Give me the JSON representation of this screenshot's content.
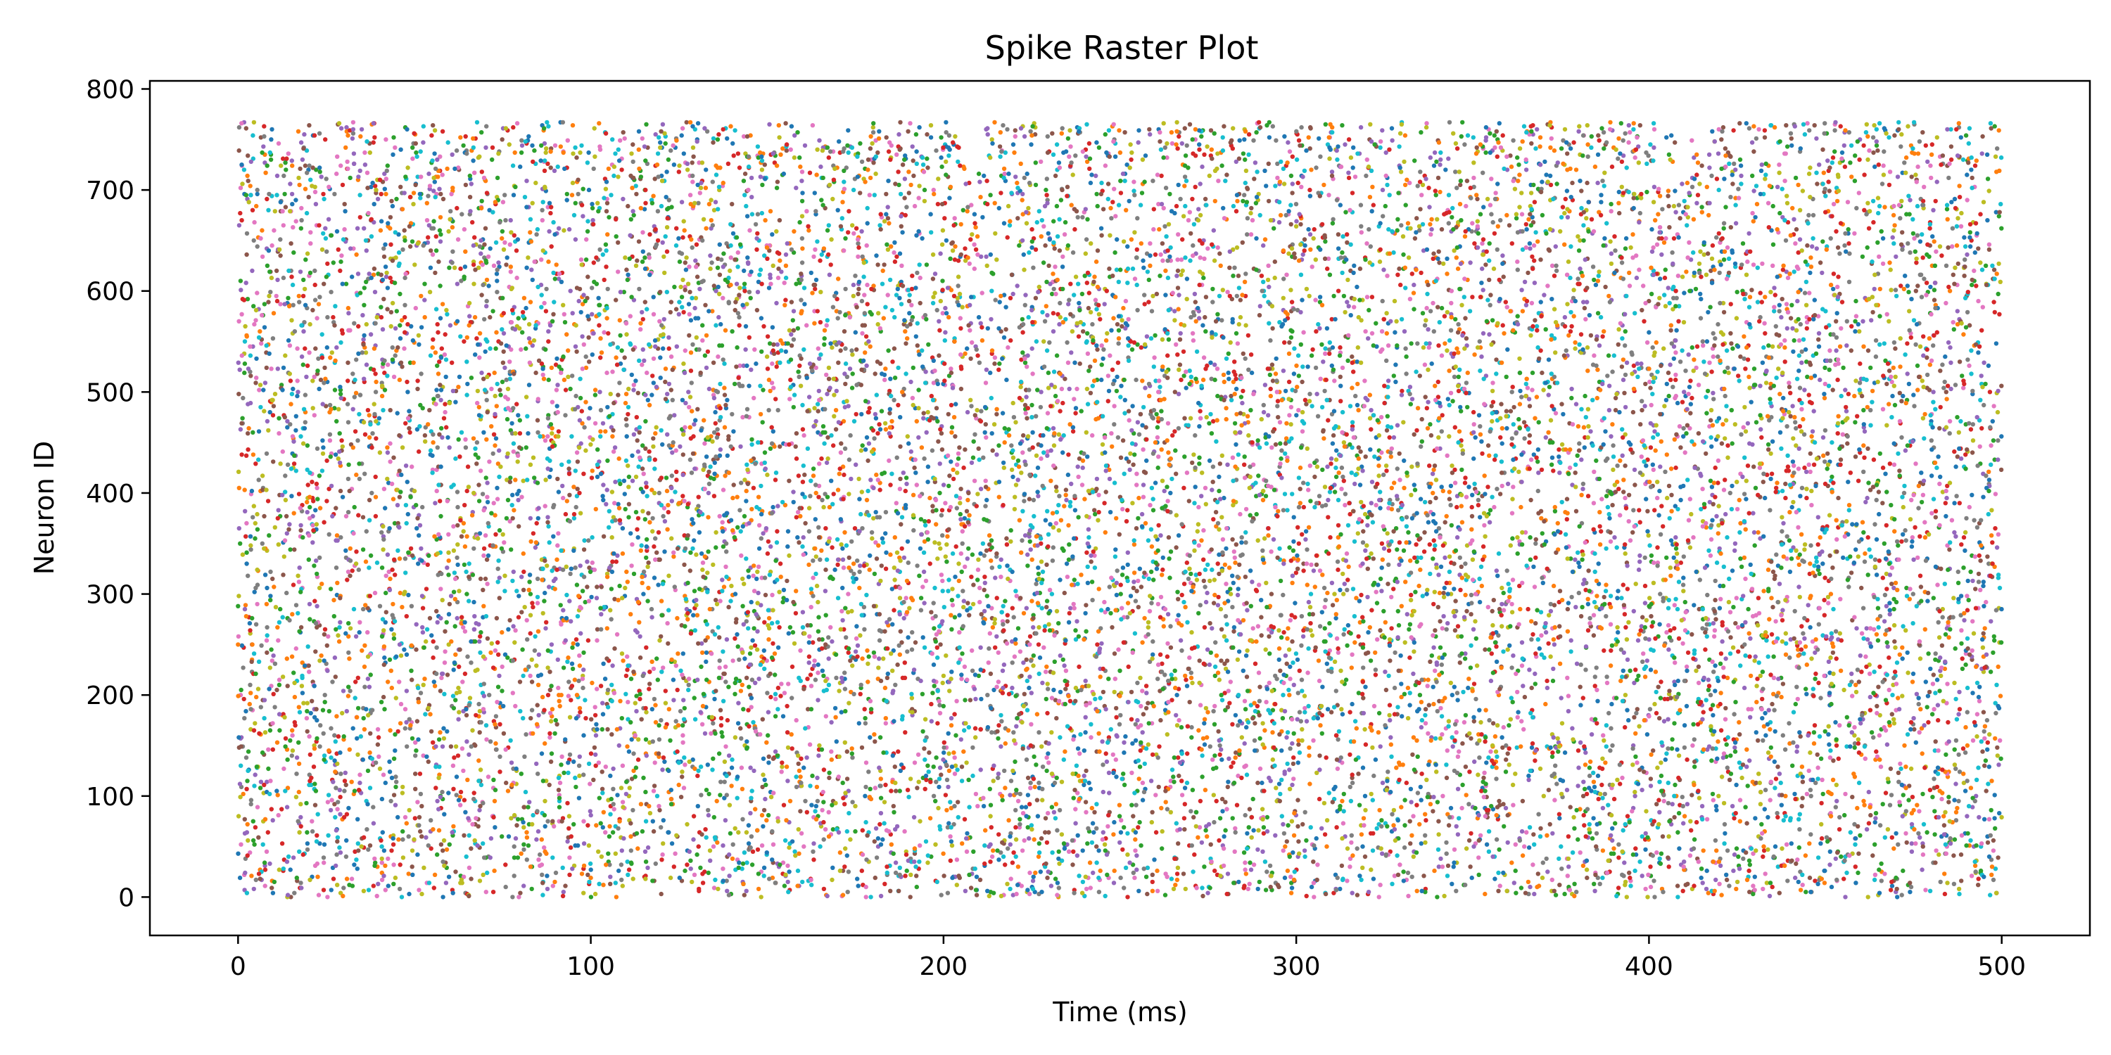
{
  "chart_data": {
    "type": "scatter",
    "title": "Spike Raster Plot",
    "xlabel": "Time (ms)",
    "ylabel": "Neuron ID",
    "xlim": [
      -25,
      525
    ],
    "ylim": [
      -38,
      808
    ],
    "x_ticks": [
      0,
      100,
      200,
      300,
      400,
      500
    ],
    "y_ticks": [
      0,
      100,
      200,
      300,
      400,
      500,
      600,
      700,
      800
    ],
    "grid": false,
    "legend": "none",
    "neuron_range": [
      0,
      767
    ],
    "time_range": [
      0,
      500
    ],
    "approx_total_spikes": 16000,
    "palette": [
      "#1f77b4",
      "#ff7f0e",
      "#2ca02c",
      "#d62728",
      "#9467bd",
      "#8c564b",
      "#e377c2",
      "#7f7f7f",
      "#bcbd22",
      "#17becf"
    ]
  }
}
